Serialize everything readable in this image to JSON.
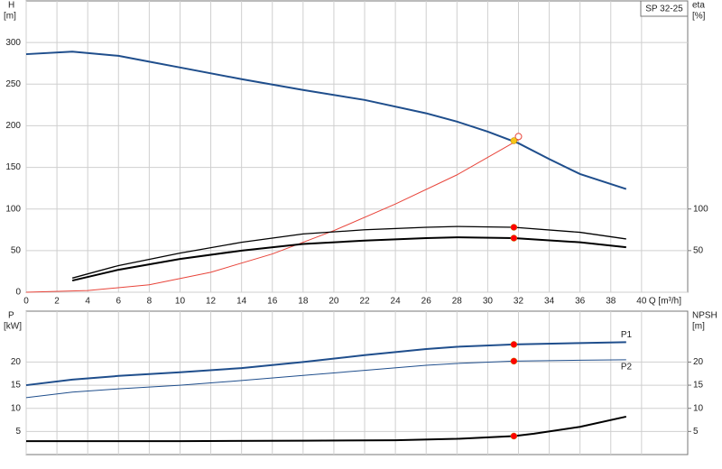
{
  "chart_data": [
    {
      "type": "line",
      "title": "SP 32-25",
      "ylabel": "H",
      "yunit": "[m]",
      "y2label": "eta",
      "y2unit": "[%]",
      "xlabel": "Q [m³/h]",
      "xlim": [
        0,
        43
      ],
      "xticks": [
        0,
        2,
        4,
        6,
        8,
        10,
        12,
        14,
        16,
        18,
        20,
        22,
        24,
        26,
        28,
        30,
        32,
        34,
        36,
        38,
        40
      ],
      "ylim": [
        0,
        350
      ],
      "yticks": [
        0,
        50,
        100,
        150,
        200,
        250,
        300
      ],
      "y2lim": [
        0,
        350
      ],
      "y2ticks": [
        50,
        100
      ],
      "grid": true,
      "series": [
        {
          "color": "#1f4e8c",
          "width": 2,
          "x": [
            0,
            3,
            6,
            8,
            10,
            14,
            18,
            22,
            26,
            28,
            30,
            32,
            34,
            36,
            39
          ],
          "values": [
            286,
            289,
            284,
            277,
            270,
            256,
            243,
            231,
            215,
            205,
            193,
            179,
            160,
            142,
            124
          ]
        },
        {
          "color": "#e8443a",
          "width": 1,
          "x": [
            0,
            4,
            8,
            12,
            16,
            20,
            24,
            28,
            32
          ],
          "values": [
            0,
            2,
            9,
            24,
            46,
            74,
            106,
            141,
            183
          ]
        },
        {
          "color": "#000000",
          "width": 1.3,
          "axis": "y2",
          "x": [
            3,
            6,
            10,
            14,
            18,
            22,
            26,
            28,
            31.7,
            36,
            39
          ],
          "values": [
            17,
            32,
            47,
            60,
            70,
            75,
            78,
            79,
            78,
            72,
            64
          ]
        },
        {
          "color": "#000000",
          "width": 2,
          "axis": "y2",
          "x": [
            3,
            6,
            10,
            14,
            18,
            22,
            26,
            28,
            31.7,
            36,
            39
          ],
          "values": [
            14,
            27,
            40,
            50,
            58,
            62,
            65,
            66,
            65,
            60,
            54
          ]
        }
      ],
      "markers": [
        {
          "x": 32,
          "y": 187,
          "color": "#e8443a",
          "hollow": true
        },
        {
          "x": 31.7,
          "y": 182,
          "color": "#f5c518"
        },
        {
          "x": 31.7,
          "y": 78,
          "color": "#ff0000"
        },
        {
          "x": 31.7,
          "y": 65,
          "color": "#ff0000"
        }
      ]
    },
    {
      "type": "line",
      "ylabel": "P",
      "yunit": "[kW]",
      "y2label": "NPSH",
      "y2unit": "[m]",
      "xlim": [
        0,
        43
      ],
      "xticks": [
        0,
        2,
        4,
        6,
        8,
        10,
        12,
        14,
        16,
        18,
        20,
        22,
        24,
        26,
        28,
        30,
        32,
        34,
        36,
        38,
        40
      ],
      "xtick_labels": false,
      "ylim": [
        0,
        31
      ],
      "yticks": [
        5,
        10,
        15,
        20
      ],
      "y2lim": [
        0,
        31
      ],
      "y2ticks": [
        5,
        10,
        15,
        20
      ],
      "grid": true,
      "series": [
        {
          "name": "P1",
          "color": "#1f4e8c",
          "width": 2,
          "x": [
            0,
            3,
            6,
            10,
            14,
            18,
            22,
            26,
            28,
            31.7,
            36,
            39
          ],
          "values": [
            15,
            16.2,
            17,
            17.8,
            18.7,
            20,
            21.5,
            22.8,
            23.3,
            23.8,
            24.1,
            24.3
          ]
        },
        {
          "name": "P2",
          "color": "#1f4e8c",
          "width": 1,
          "x": [
            0,
            3,
            6,
            10,
            14,
            18,
            22,
            26,
            28,
            31.7,
            36,
            39
          ],
          "values": [
            12.3,
            13.5,
            14.2,
            15,
            16,
            17.1,
            18.2,
            19.3,
            19.7,
            20.2,
            20.4,
            20.5
          ]
        },
        {
          "color": "#000000",
          "width": 2,
          "axis": "y2",
          "x": [
            0,
            3,
            10,
            18,
            24,
            28,
            31.7,
            33,
            36,
            39
          ],
          "values": [
            2.9,
            2.9,
            2.9,
            3,
            3.1,
            3.4,
            4,
            4.5,
            6,
            8.2
          ]
        }
      ],
      "markers": [
        {
          "x": 31.7,
          "y": 23.8,
          "color": "#ff0000"
        },
        {
          "x": 31.7,
          "y": 20.2,
          "color": "#ff0000"
        },
        {
          "x": 31.7,
          "y": 4,
          "color": "#ff0000"
        }
      ]
    }
  ]
}
